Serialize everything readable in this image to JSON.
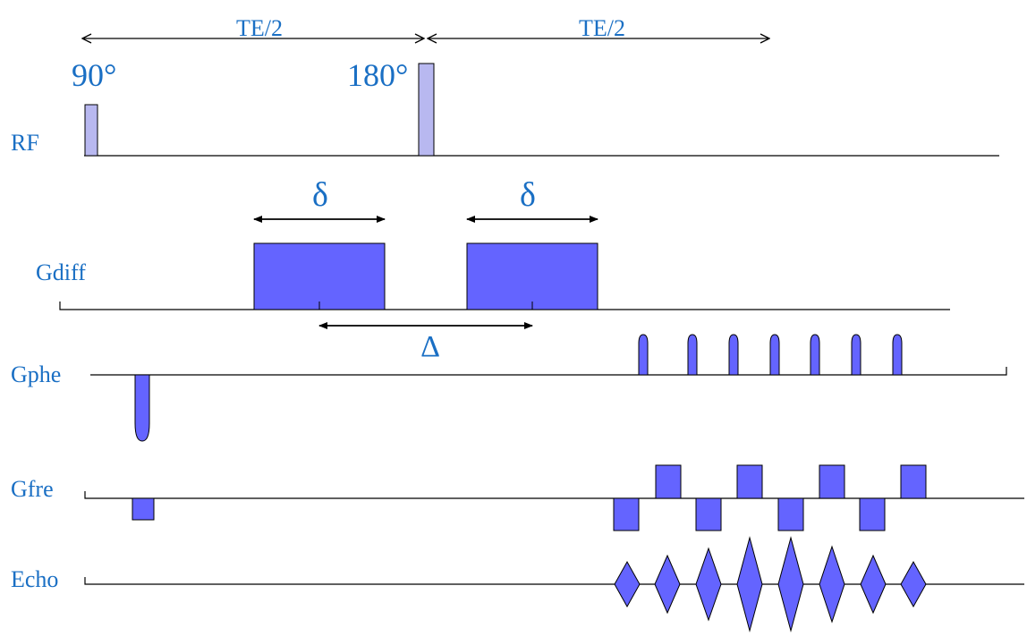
{
  "timing": {
    "te_half_left": "TE/2",
    "te_half_right": "TE/2",
    "delta_small_left": "δ",
    "delta_small_right": "δ",
    "delta_big": "Δ"
  },
  "rf": {
    "label": "RF",
    "pulse_90": "90°",
    "pulse_180": "180°"
  },
  "channels": {
    "gdiff": "Gdiff",
    "gphe": "Gphe",
    "gfre": "Gfre",
    "echo": "Echo"
  },
  "colors": {
    "label": "#1a6fc4",
    "rf_pulse": "#b8b8f0",
    "gradient": "#6464ff",
    "line": "#000000"
  }
}
